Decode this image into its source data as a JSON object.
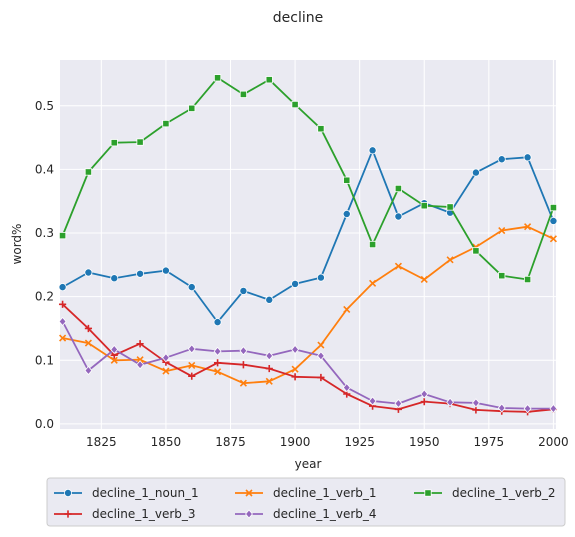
{
  "chart_data": {
    "type": "line",
    "title": "decline",
    "xlabel": "year",
    "ylabel": "word%",
    "xlim": [
      1809,
      2001
    ],
    "ylim": [
      -0.008,
      0.572
    ],
    "xticks": [
      1825,
      1850,
      1875,
      1900,
      1925,
      1950,
      1975,
      2000
    ],
    "yticks": [
      0.0,
      0.1,
      0.2,
      0.3,
      0.4,
      0.5
    ],
    "ytick_labels": [
      "0.0",
      "0.1",
      "0.2",
      "0.3",
      "0.4",
      "0.5"
    ],
    "grid": true,
    "legend_placement": "bottom",
    "x": [
      1810,
      1820,
      1830,
      1840,
      1850,
      1860,
      1870,
      1880,
      1890,
      1900,
      1910,
      1920,
      1930,
      1940,
      1950,
      1960,
      1970,
      1980,
      1990,
      2000
    ],
    "series": [
      {
        "name": "decline_1_noun_1",
        "color": "#1f77b4",
        "marker": "circle",
        "values": [
          0.215,
          0.238,
          0.229,
          0.236,
          0.241,
          0.215,
          0.16,
          0.209,
          0.195,
          0.22,
          0.23,
          0.33,
          0.43,
          0.326,
          0.347,
          0.332,
          0.395,
          0.416,
          0.419,
          0.319
        ]
      },
      {
        "name": "decline_1_verb_1",
        "color": "#ff7f0e",
        "marker": "x",
        "values": [
          0.135,
          0.127,
          0.1,
          0.101,
          0.083,
          0.092,
          0.082,
          0.064,
          0.067,
          0.086,
          0.124,
          0.18,
          0.221,
          0.248,
          0.227,
          0.258,
          0.278,
          0.304,
          0.31,
          0.291
        ]
      },
      {
        "name": "decline_1_verb_2",
        "color": "#2ca02c",
        "marker": "square",
        "values": [
          0.296,
          0.396,
          0.442,
          0.443,
          0.472,
          0.496,
          0.544,
          0.518,
          0.541,
          0.502,
          0.464,
          0.383,
          0.282,
          0.37,
          0.343,
          0.341,
          0.272,
          0.233,
          0.227,
          0.34
        ]
      },
      {
        "name": "decline_1_verb_3",
        "color": "#d62728",
        "marker": "plus",
        "values": [
          0.188,
          0.15,
          0.108,
          0.126,
          0.097,
          0.075,
          0.096,
          0.093,
          0.087,
          0.074,
          0.073,
          0.047,
          0.028,
          0.023,
          0.035,
          0.032,
          0.022,
          0.02,
          0.019,
          0.023
        ]
      },
      {
        "name": "decline_1_verb_4",
        "color": "#9467bd",
        "marker": "diamond",
        "values": [
          0.161,
          0.084,
          0.117,
          0.093,
          0.104,
          0.118,
          0.114,
          0.115,
          0.107,
          0.117,
          0.107,
          0.057,
          0.036,
          0.032,
          0.047,
          0.034,
          0.033,
          0.025,
          0.024,
          0.024
        ]
      }
    ]
  }
}
